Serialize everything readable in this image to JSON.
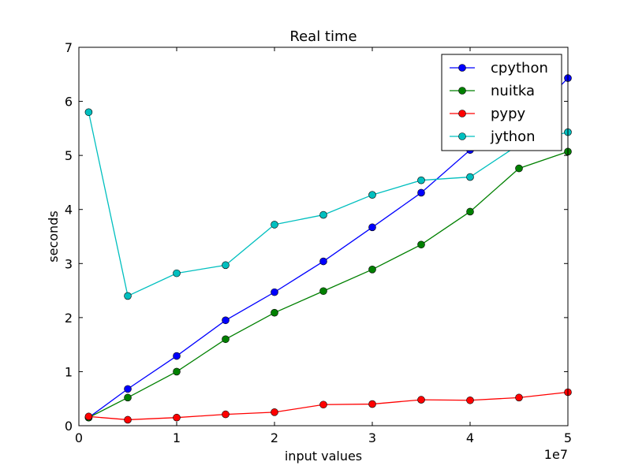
{
  "chart_data": {
    "type": "line",
    "title": "Real time",
    "xlabel": "input values",
    "ylabel": "seconds",
    "x_offset_text": "1e7",
    "xlim": [
      0,
      5
    ],
    "ylim": [
      0,
      7
    ],
    "x_ticks": [
      0,
      1,
      2,
      3,
      4,
      5
    ],
    "y_ticks": [
      0,
      1,
      2,
      3,
      4,
      5,
      6,
      7
    ],
    "legend_position": "top-right",
    "grid": false,
    "series": [
      {
        "name": "cpython",
        "color": "#0000ff",
        "x": [
          0.1,
          0.5,
          1.0,
          1.5,
          2.0,
          2.5,
          3.0,
          3.5,
          4.0,
          4.5,
          5.0
        ],
        "y": [
          0.15,
          0.68,
          1.29,
          1.95,
          2.47,
          3.04,
          3.67,
          4.31,
          5.1,
          5.5,
          6.43
        ]
      },
      {
        "name": "nuitka",
        "color": "#008000",
        "x": [
          0.1,
          0.5,
          1.0,
          1.5,
          2.0,
          2.5,
          3.0,
          3.5,
          4.0,
          4.5,
          5.0
        ],
        "y": [
          0.15,
          0.52,
          1.0,
          1.6,
          2.09,
          2.49,
          2.89,
          3.35,
          3.96,
          4.76,
          5.07
        ]
      },
      {
        "name": "pypy",
        "color": "#ff0000",
        "x": [
          0.1,
          0.5,
          1.0,
          1.5,
          2.0,
          2.5,
          3.0,
          3.5,
          4.0,
          4.5,
          5.0
        ],
        "y": [
          0.17,
          0.11,
          0.15,
          0.21,
          0.25,
          0.39,
          0.4,
          0.48,
          0.47,
          0.52,
          0.62
        ]
      },
      {
        "name": "jython",
        "color": "#00bfbf",
        "x": [
          0.1,
          0.5,
          1.0,
          1.5,
          2.0,
          2.5,
          3.0,
          3.5,
          4.0,
          4.5,
          5.0
        ],
        "y": [
          5.8,
          2.4,
          2.82,
          2.97,
          3.72,
          3.9,
          4.27,
          4.54,
          4.6,
          5.2,
          5.43
        ]
      }
    ]
  }
}
